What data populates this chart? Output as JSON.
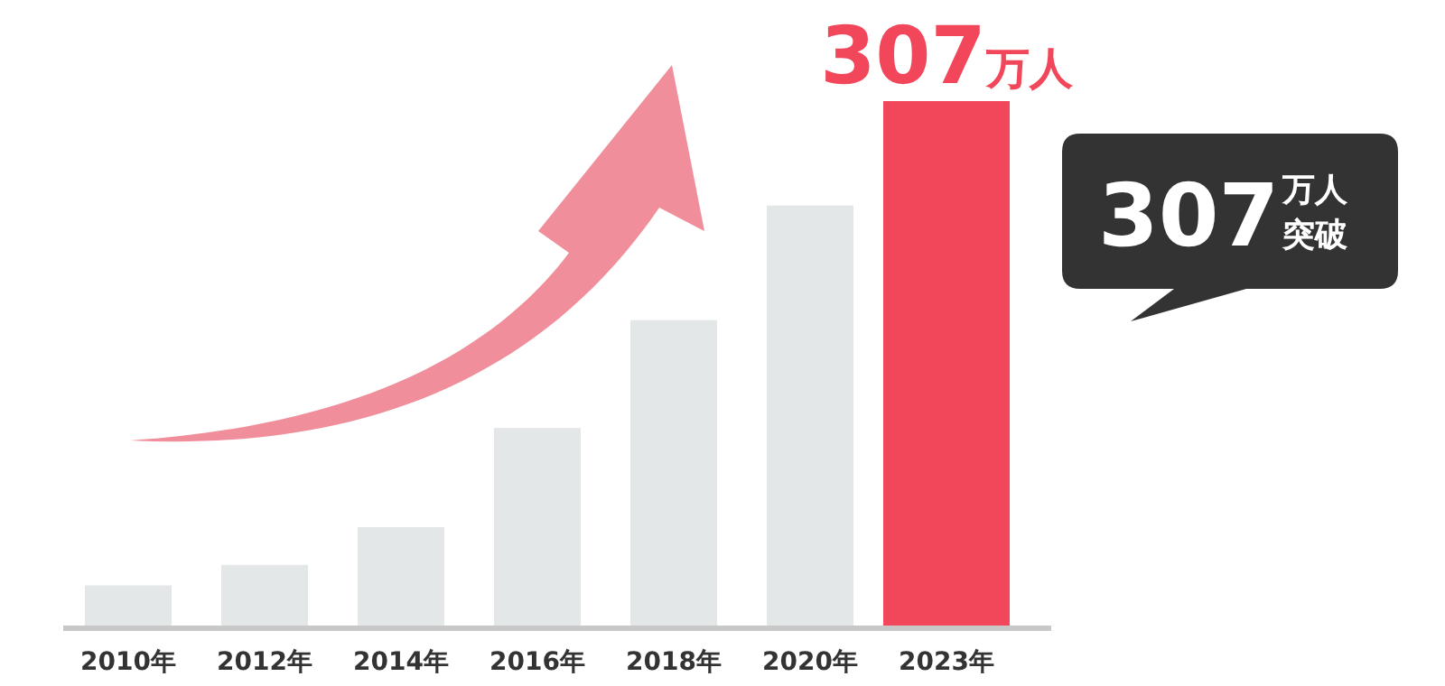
{
  "chart_data": {
    "type": "bar",
    "categories": [
      "2010年",
      "2012年",
      "2014年",
      "2016年",
      "2018年",
      "2020年",
      "2023年"
    ],
    "values": [
      24,
      36,
      58,
      116,
      179,
      246,
      307
    ],
    "colors": [
      "#e4e7e8",
      "#e4e7e8",
      "#e4e7e8",
      "#e4e7e8",
      "#e4e7e8",
      "#e4e7e8",
      "#f2475a"
    ],
    "value_labels": [
      null,
      null,
      null,
      null,
      null,
      null,
      "307万人"
    ],
    "annotations": [
      "307万人突破"
    ]
  }
}
